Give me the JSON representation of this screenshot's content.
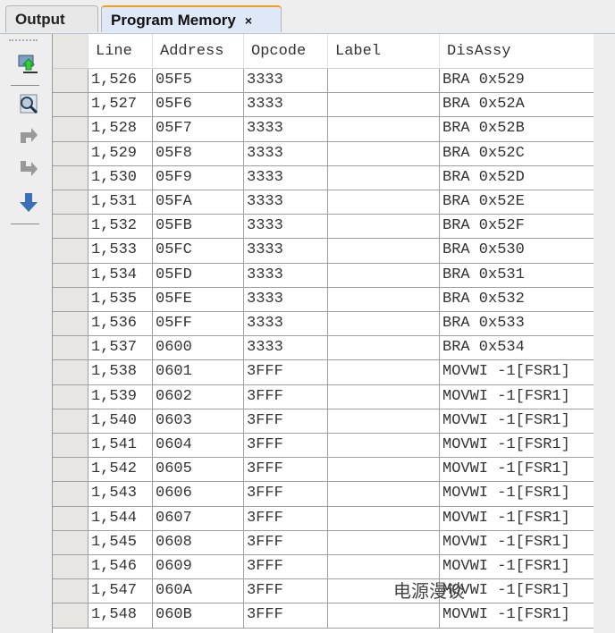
{
  "tabs": [
    {
      "label": "Output"
    },
    {
      "label": "Program Memory",
      "close": "×"
    }
  ],
  "toolbar": [
    "import-icon",
    "find-icon",
    "step-forward-icon",
    "step-back-icon",
    "down-arrow-icon"
  ],
  "table": {
    "columns": [
      "Line",
      "Address",
      "Opcode",
      "Label",
      "DisAssy"
    ],
    "rows": [
      [
        "1,526",
        "05F5",
        "3333",
        "",
        "BRA 0x529"
      ],
      [
        "1,527",
        "05F6",
        "3333",
        "",
        "BRA 0x52A"
      ],
      [
        "1,528",
        "05F7",
        "3333",
        "",
        "BRA 0x52B"
      ],
      [
        "1,529",
        "05F8",
        "3333",
        "",
        "BRA 0x52C"
      ],
      [
        "1,530",
        "05F9",
        "3333",
        "",
        "BRA 0x52D"
      ],
      [
        "1,531",
        "05FA",
        "3333",
        "",
        "BRA 0x52E"
      ],
      [
        "1,532",
        "05FB",
        "3333",
        "",
        "BRA 0x52F"
      ],
      [
        "1,533",
        "05FC",
        "3333",
        "",
        "BRA 0x530"
      ],
      [
        "1,534",
        "05FD",
        "3333",
        "",
        "BRA 0x531"
      ],
      [
        "1,535",
        "05FE",
        "3333",
        "",
        "BRA 0x532"
      ],
      [
        "1,536",
        "05FF",
        "3333",
        "",
        "BRA 0x533"
      ],
      [
        "1,537",
        "0600",
        "3333",
        "",
        "BRA 0x534"
      ],
      [
        "1,538",
        "0601",
        "3FFF",
        "",
        "MOVWI -1[FSR1]"
      ],
      [
        "1,539",
        "0602",
        "3FFF",
        "",
        "MOVWI -1[FSR1]"
      ],
      [
        "1,540",
        "0603",
        "3FFF",
        "",
        "MOVWI -1[FSR1]"
      ],
      [
        "1,541",
        "0604",
        "3FFF",
        "",
        "MOVWI -1[FSR1]"
      ],
      [
        "1,542",
        "0605",
        "3FFF",
        "",
        "MOVWI -1[FSR1]"
      ],
      [
        "1,543",
        "0606",
        "3FFF",
        "",
        "MOVWI -1[FSR1]"
      ],
      [
        "1,544",
        "0607",
        "3FFF",
        "",
        "MOVWI -1[FSR1]"
      ],
      [
        "1,545",
        "0608",
        "3FFF",
        "",
        "MOVWI -1[FSR1]"
      ],
      [
        "1,546",
        "0609",
        "3FFF",
        "",
        "MOVWI -1[FSR1]"
      ],
      [
        "1,547",
        "060A",
        "3FFF",
        "",
        "MOVWI -1[FSR1]"
      ],
      [
        "1,548",
        "060B",
        "3FFF",
        "",
        "MOVWI -1[FSR1]"
      ]
    ]
  },
  "watermark": "电源漫谈"
}
